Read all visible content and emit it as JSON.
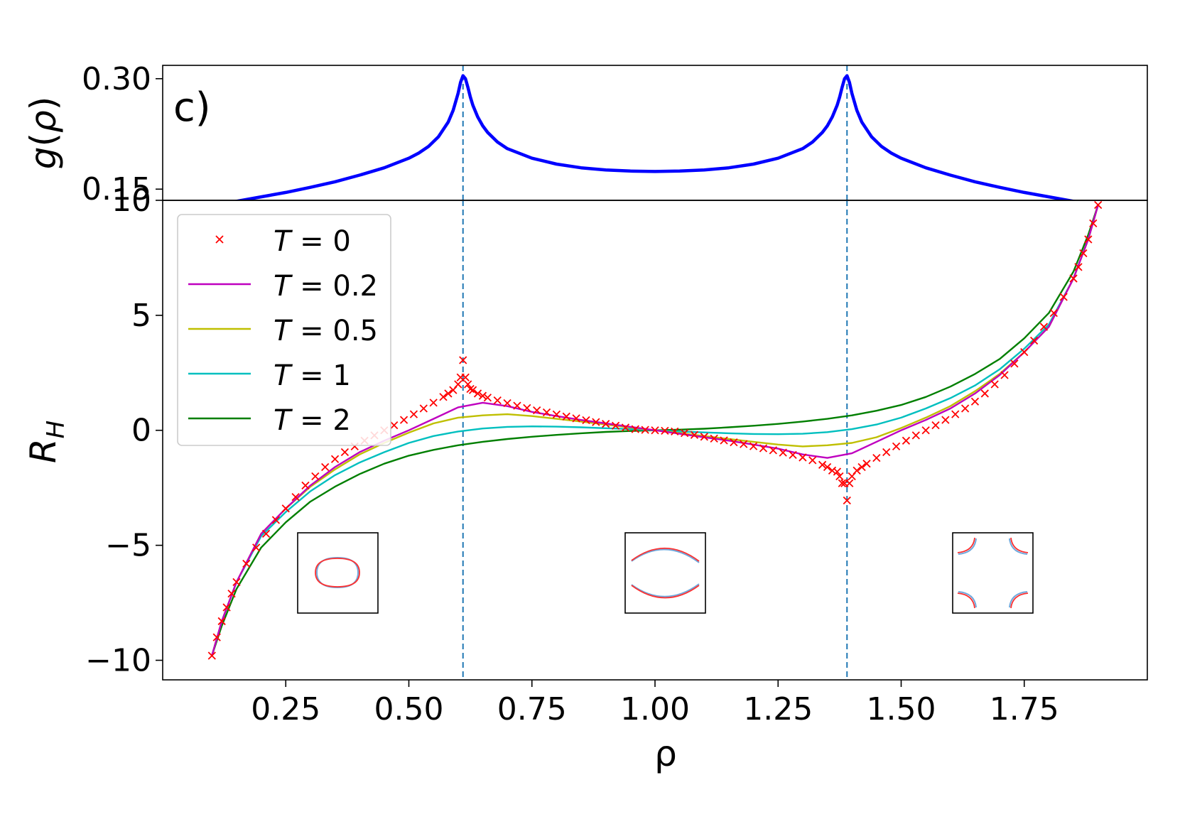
{
  "chart_data": [
    {
      "type": "line",
      "panel_label": "c)",
      "ylabel": "g(ρ)",
      "xlim": [
        0.0,
        2.0
      ],
      "ylim": [
        0.1348,
        0.3181
      ],
      "yticks": [
        {
          "v": 0.15,
          "label": "0.15"
        },
        {
          "v": 0.3,
          "label": "0.30"
        }
      ],
      "series": [
        {
          "color": "#0000ff",
          "x": [
            0.1,
            0.15,
            0.2,
            0.25,
            0.3,
            0.35,
            0.4,
            0.45,
            0.5,
            0.52,
            0.54,
            0.56,
            0.58,
            0.59,
            0.6,
            0.605,
            0.61,
            0.615,
            0.62,
            0.625,
            0.63,
            0.64,
            0.65,
            0.66,
            0.68,
            0.7,
            0.75,
            0.8,
            0.85,
            0.9,
            0.95,
            1.0,
            1.05,
            1.1,
            1.15,
            1.2,
            1.25,
            1.3,
            1.32,
            1.34,
            1.35,
            1.36,
            1.37,
            1.375,
            1.38,
            1.385,
            1.39,
            1.395,
            1.4,
            1.41,
            1.42,
            1.44,
            1.46,
            1.48,
            1.5,
            1.55,
            1.6,
            1.65,
            1.7,
            1.75,
            1.8,
            1.85,
            1.9
          ],
          "y": [
            0.1275,
            0.1335,
            0.1395,
            0.1455,
            0.1525,
            0.16,
            0.169,
            0.179,
            0.192,
            0.199,
            0.208,
            0.221,
            0.241,
            0.257,
            0.28,
            0.295,
            0.304,
            0.3,
            0.288,
            0.275,
            0.264,
            0.248,
            0.236,
            0.227,
            0.214,
            0.205,
            0.192,
            0.184,
            0.179,
            0.176,
            0.1745,
            0.174,
            0.1745,
            0.176,
            0.179,
            0.184,
            0.192,
            0.205,
            0.214,
            0.227,
            0.236,
            0.248,
            0.264,
            0.275,
            0.288,
            0.3,
            0.304,
            0.295,
            0.28,
            0.257,
            0.241,
            0.221,
            0.208,
            0.199,
            0.192,
            0.179,
            0.169,
            0.16,
            0.1525,
            0.1455,
            0.1395,
            0.1335,
            0.129
          ]
        }
      ]
    },
    {
      "type": "line",
      "xlabel": "ρ",
      "ylabel": "R_H",
      "xlim": [
        0.0,
        2.0
      ],
      "ylim": [
        -10.85,
        10.0
      ],
      "xticks": [
        {
          "v": 0.25,
          "label": "0.25"
        },
        {
          "v": 0.5,
          "label": "0.50"
        },
        {
          "v": 0.75,
          "label": "0.75"
        },
        {
          "v": 1.0,
          "label": "1.00"
        },
        {
          "v": 1.25,
          "label": "1.25"
        },
        {
          "v": 1.5,
          "label": "1.50"
        },
        {
          "v": 1.75,
          "label": "1.75"
        }
      ],
      "yticks": [
        {
          "v": -10,
          "label": "−10"
        },
        {
          "v": -5,
          "label": "−5"
        },
        {
          "v": 0,
          "label": "0"
        },
        {
          "v": 5,
          "label": "5"
        },
        {
          "v": 10,
          "label": "10"
        }
      ],
      "vlines": [
        0.61,
        1.39
      ],
      "legend_position": "upper-left",
      "series": [
        {
          "name": "T = 0",
          "name_parts": {
            "var": "T",
            "rest": " = 0"
          },
          "color": "#ff0000",
          "marker": "x",
          "x": [
            0.1,
            0.11,
            0.12,
            0.13,
            0.14,
            0.15,
            0.17,
            0.19,
            0.21,
            0.23,
            0.25,
            0.27,
            0.29,
            0.31,
            0.33,
            0.35,
            0.37,
            0.39,
            0.41,
            0.43,
            0.45,
            0.47,
            0.49,
            0.51,
            0.53,
            0.55,
            0.57,
            0.58,
            0.59,
            0.6,
            0.605,
            0.61,
            0.615,
            0.62,
            0.625,
            0.63,
            0.64,
            0.65,
            0.66,
            0.68,
            0.7,
            0.72,
            0.74,
            0.76,
            0.78,
            0.8,
            0.82,
            0.84,
            0.86,
            0.88,
            0.9,
            0.92,
            0.94,
            0.96,
            0.98,
            1.0,
            1.02,
            1.04,
            1.06,
            1.08,
            1.1,
            1.12,
            1.14,
            1.16,
            1.18,
            1.2,
            1.22,
            1.24,
            1.26,
            1.28,
            1.3,
            1.32,
            1.34,
            1.35,
            1.36,
            1.37,
            1.375,
            1.38,
            1.385,
            1.39,
            1.395,
            1.4,
            1.41,
            1.42,
            1.43,
            1.45,
            1.47,
            1.49,
            1.51,
            1.53,
            1.55,
            1.57,
            1.59,
            1.61,
            1.63,
            1.65,
            1.67,
            1.69,
            1.71,
            1.73,
            1.75,
            1.77,
            1.79,
            1.81,
            1.83,
            1.85,
            1.86,
            1.87,
            1.88,
            1.89,
            1.9
          ],
          "y": [
            -9.8,
            -9.0,
            -8.3,
            -7.7,
            -7.1,
            -6.6,
            -5.8,
            -5.1,
            -4.5,
            -3.9,
            -3.4,
            -2.9,
            -2.4,
            -2.0,
            -1.6,
            -1.25,
            -0.95,
            -0.7,
            -0.45,
            -0.22,
            0.0,
            0.22,
            0.45,
            0.7,
            0.95,
            1.2,
            1.45,
            1.6,
            1.75,
            2.0,
            2.3,
            3.05,
            2.3,
            2.0,
            1.8,
            1.75,
            1.6,
            1.5,
            1.42,
            1.3,
            1.18,
            1.07,
            0.97,
            0.87,
            0.78,
            0.69,
            0.6,
            0.52,
            0.44,
            0.36,
            0.28,
            0.2,
            0.12,
            0.05,
            0.02,
            0.0,
            -0.02,
            -0.05,
            -0.12,
            -0.2,
            -0.28,
            -0.36,
            -0.44,
            -0.52,
            -0.6,
            -0.69,
            -0.78,
            -0.87,
            -0.97,
            -1.07,
            -1.18,
            -1.3,
            -1.5,
            -1.6,
            -1.75,
            -1.8,
            -2.0,
            -2.3,
            -2.3,
            -3.05,
            -2.3,
            -2.0,
            -1.75,
            -1.6,
            -1.45,
            -1.2,
            -0.95,
            -0.7,
            -0.45,
            -0.22,
            0.0,
            0.22,
            0.45,
            0.7,
            0.95,
            1.25,
            1.6,
            2.0,
            2.4,
            2.9,
            3.4,
            3.9,
            4.5,
            5.1,
            5.8,
            6.6,
            7.1,
            7.7,
            8.3,
            9.0,
            9.8
          ]
        },
        {
          "name": "T = 0.2",
          "name_parts": {
            "var": "T",
            "rest": " = 0.2"
          },
          "color": "#bf00bf",
          "marker": "line",
          "x": [
            0.1,
            0.12,
            0.15,
            0.2,
            0.25,
            0.3,
            0.35,
            0.4,
            0.45,
            0.5,
            0.55,
            0.6,
            0.65,
            0.7,
            0.75,
            0.8,
            0.85,
            0.9,
            0.95,
            1.0,
            1.05,
            1.1,
            1.15,
            1.2,
            1.25,
            1.3,
            1.35,
            1.4,
            1.45,
            1.5,
            1.55,
            1.6,
            1.65,
            1.7,
            1.75,
            1.8,
            1.85,
            1.88,
            1.9
          ],
          "y": [
            -9.8,
            -8.3,
            -6.6,
            -4.5,
            -3.4,
            -2.4,
            -1.6,
            -0.95,
            -0.45,
            0.0,
            0.5,
            1.0,
            1.2,
            1.05,
            0.8,
            0.62,
            0.45,
            0.3,
            0.15,
            0.0,
            -0.15,
            -0.3,
            -0.45,
            -0.62,
            -0.8,
            -1.05,
            -1.2,
            -1.0,
            -0.5,
            0.0,
            0.45,
            0.95,
            1.6,
            2.4,
            3.4,
            4.5,
            6.6,
            8.3,
            9.8
          ]
        },
        {
          "name": "T = 0.5",
          "name_parts": {
            "var": "T",
            "rest": " = 0.5"
          },
          "color": "#bfbf00",
          "marker": "line",
          "x": [
            0.1,
            0.12,
            0.15,
            0.2,
            0.25,
            0.3,
            0.35,
            0.4,
            0.45,
            0.5,
            0.55,
            0.6,
            0.65,
            0.7,
            0.75,
            0.8,
            0.85,
            0.9,
            0.95,
            1.0,
            1.05,
            1.1,
            1.15,
            1.2,
            1.25,
            1.3,
            1.35,
            1.4,
            1.45,
            1.5,
            1.55,
            1.6,
            1.65,
            1.7,
            1.75,
            1.8,
            1.85,
            1.88,
            1.9
          ],
          "y": [
            -9.8,
            -8.3,
            -6.6,
            -4.5,
            -3.4,
            -2.45,
            -1.7,
            -1.05,
            -0.55,
            -0.1,
            0.3,
            0.55,
            0.65,
            0.7,
            0.62,
            0.5,
            0.38,
            0.25,
            0.12,
            0.0,
            -0.12,
            -0.25,
            -0.38,
            -0.5,
            -0.62,
            -0.7,
            -0.65,
            -0.55,
            -0.3,
            0.1,
            0.55,
            1.05,
            1.7,
            2.45,
            3.4,
            4.5,
            6.6,
            8.3,
            9.8
          ]
        },
        {
          "name": "T = 1",
          "name_parts": {
            "var": "T",
            "rest": " = 1"
          },
          "color": "#00bfbf",
          "marker": "line",
          "x": [
            0.1,
            0.12,
            0.15,
            0.2,
            0.25,
            0.3,
            0.35,
            0.4,
            0.45,
            0.5,
            0.55,
            0.6,
            0.65,
            0.7,
            0.75,
            0.8,
            0.85,
            0.9,
            0.95,
            1.0,
            1.05,
            1.1,
            1.15,
            1.2,
            1.25,
            1.3,
            1.35,
            1.4,
            1.45,
            1.5,
            1.55,
            1.6,
            1.65,
            1.7,
            1.75,
            1.8,
            1.85,
            1.88,
            1.9
          ],
          "y": [
            -9.8,
            -8.3,
            -6.6,
            -4.6,
            -3.55,
            -2.65,
            -1.95,
            -1.4,
            -0.95,
            -0.55,
            -0.25,
            -0.05,
            0.08,
            0.15,
            0.17,
            0.16,
            0.13,
            0.09,
            0.05,
            0.0,
            -0.05,
            -0.09,
            -0.13,
            -0.16,
            -0.17,
            -0.15,
            -0.08,
            0.05,
            0.25,
            0.55,
            0.95,
            1.4,
            1.95,
            2.65,
            3.55,
            4.6,
            6.6,
            8.3,
            9.8
          ]
        },
        {
          "name": "T = 2",
          "name_parts": {
            "var": "T",
            "rest": " = 2"
          },
          "color": "#007f00",
          "marker": "line",
          "x": [
            0.1,
            0.12,
            0.15,
            0.2,
            0.25,
            0.3,
            0.35,
            0.4,
            0.45,
            0.5,
            0.55,
            0.6,
            0.65,
            0.7,
            0.75,
            0.8,
            0.85,
            0.9,
            0.95,
            1.0,
            1.05,
            1.1,
            1.15,
            1.2,
            1.25,
            1.3,
            1.35,
            1.4,
            1.45,
            1.5,
            1.55,
            1.6,
            1.65,
            1.7,
            1.75,
            1.8,
            1.85,
            1.88,
            1.9
          ],
          "y": [
            -9.8,
            -8.5,
            -6.9,
            -5.1,
            -4.0,
            -3.1,
            -2.45,
            -1.9,
            -1.45,
            -1.1,
            -0.85,
            -0.65,
            -0.5,
            -0.38,
            -0.28,
            -0.2,
            -0.13,
            -0.07,
            -0.03,
            0.0,
            0.03,
            0.07,
            0.13,
            0.2,
            0.28,
            0.38,
            0.5,
            0.65,
            0.85,
            1.1,
            1.45,
            1.9,
            2.45,
            3.1,
            4.0,
            5.1,
            6.9,
            8.5,
            9.8
          ]
        }
      ]
    }
  ]
}
